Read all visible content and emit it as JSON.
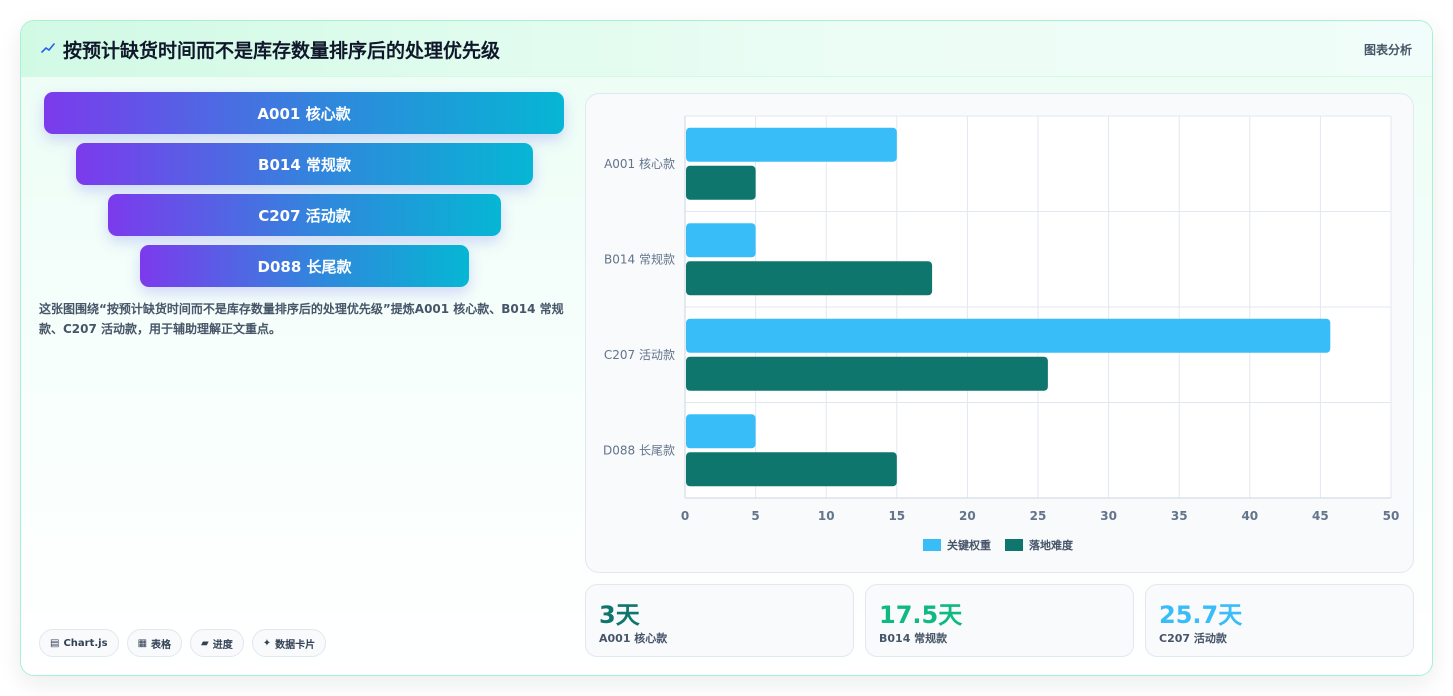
{
  "header": {
    "title": "按预计缺货时间而不是库存数量排序后的处理优先级",
    "link_label": "图表分析"
  },
  "funnel": [
    {
      "label": "A001 核心款"
    },
    {
      "label": "B014 常规款"
    },
    {
      "label": "C207 活动款"
    },
    {
      "label": "D088 长尾款"
    }
  ],
  "description": "这张图围绕“按预计缺货时间而不是库存数量排序后的处理优先级”提炼A001 核心款、B014 常规款、C207 活动款，用于辅助理解正文重点。",
  "chips": [
    {
      "icon": "chart-icon",
      "label": "Chart.js"
    },
    {
      "icon": "table-icon",
      "label": "表格"
    },
    {
      "icon": "progress-icon",
      "label": "进度"
    },
    {
      "icon": "sparkle-icon",
      "label": "数据卡片"
    }
  ],
  "chart_data": {
    "type": "bar",
    "orientation": "horizontal",
    "categories": [
      "A001 核心款",
      "B014 常规款",
      "C207 活动款",
      "D088 长尾款"
    ],
    "series": [
      {
        "name": "关键权重",
        "color": "#38bdf8",
        "values": [
          15,
          5,
          45.7,
          5
        ]
      },
      {
        "name": "落地难度",
        "color": "#0f766e",
        "values": [
          5,
          17.5,
          25.7,
          15
        ]
      }
    ],
    "xlim": [
      0,
      50
    ],
    "xticks": [
      "0",
      "5",
      "10",
      "15",
      "20",
      "25",
      "30",
      "35",
      "40",
      "45",
      "50"
    ],
    "grid": true,
    "legend": "bottom"
  },
  "stats": [
    {
      "value": "3天",
      "label": "A001 核心款",
      "color": "#0f766e"
    },
    {
      "value": "17.5天",
      "label": "B014 常规款",
      "color": "#10b981"
    },
    {
      "value": "25.7天",
      "label": "C207 活动款",
      "color": "#38bdf8"
    }
  ]
}
